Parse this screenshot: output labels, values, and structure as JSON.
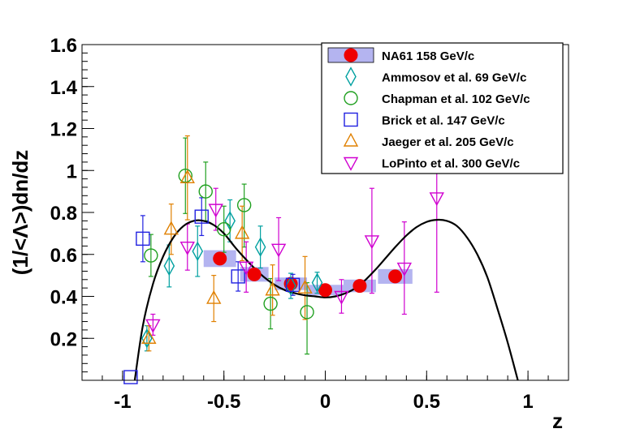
{
  "chart_data": {
    "type": "scatter",
    "title": "",
    "xlabel": "z",
    "ylabel": "(1/<Λ>)dn/dz",
    "xlim": [
      -1.2,
      1.2
    ],
    "ylim": [
      0.0,
      1.6
    ],
    "xticks": [
      {
        "v": -1,
        "label": "-1"
      },
      {
        "v": -0.5,
        "label": "-0.5"
      },
      {
        "v": 0,
        "label": "0"
      },
      {
        "v": 0.5,
        "label": "0.5"
      },
      {
        "v": 1,
        "label": "1"
      }
    ],
    "yticks": [
      {
        "v": 0.2,
        "label": "0.2"
      },
      {
        "v": 0.4,
        "label": "0.4"
      },
      {
        "v": 0.6,
        "label": "0.6"
      },
      {
        "v": 0.8,
        "label": "0.8"
      },
      {
        "v": 1.0,
        "label": "1"
      },
      {
        "v": 1.2,
        "label": "1.2"
      },
      {
        "v": 1.4,
        "label": "1.4"
      },
      {
        "v": 1.6,
        "label": "1.6"
      }
    ],
    "legend_position": "top-right",
    "curve": {
      "name": "fit",
      "color": "#000000",
      "points": [
        [
          -0.94,
          0.0
        ],
        [
          -0.9,
          0.26
        ],
        [
          -0.85,
          0.46
        ],
        [
          -0.8,
          0.59
        ],
        [
          -0.75,
          0.68
        ],
        [
          -0.7,
          0.735
        ],
        [
          -0.65,
          0.76
        ],
        [
          -0.6,
          0.76
        ],
        [
          -0.55,
          0.74
        ],
        [
          -0.5,
          0.7
        ],
        [
          -0.45,
          0.64
        ],
        [
          -0.4,
          0.585
        ],
        [
          -0.35,
          0.535
        ],
        [
          -0.3,
          0.49
        ],
        [
          -0.25,
          0.455
        ],
        [
          -0.2,
          0.43
        ],
        [
          -0.15,
          0.415
        ],
        [
          -0.1,
          0.405
        ],
        [
          -0.05,
          0.4
        ],
        [
          0.0,
          0.395
        ],
        [
          0.05,
          0.4
        ],
        [
          0.1,
          0.415
        ],
        [
          0.15,
          0.44
        ],
        [
          0.2,
          0.48
        ],
        [
          0.25,
          0.53
        ],
        [
          0.3,
          0.585
        ],
        [
          0.35,
          0.64
        ],
        [
          0.4,
          0.69
        ],
        [
          0.45,
          0.73
        ],
        [
          0.5,
          0.755
        ],
        [
          0.55,
          0.765
        ],
        [
          0.6,
          0.76
        ],
        [
          0.65,
          0.735
        ],
        [
          0.7,
          0.68
        ],
        [
          0.75,
          0.6
        ],
        [
          0.8,
          0.49
        ],
        [
          0.85,
          0.34
        ],
        [
          0.9,
          0.18
        ],
        [
          0.95,
          0.0
        ]
      ]
    },
    "series": [
      {
        "name": "NA61 158 GeV/c",
        "marker": "circle-filled",
        "color": "#ee0000",
        "band_color": "#b4b4f0",
        "points": [
          {
            "x": -0.52,
            "y": 0.58,
            "bx": 0.08,
            "by": 0.04
          },
          {
            "x": -0.35,
            "y": 0.505,
            "bx": 0.07,
            "by": 0.035
          },
          {
            "x": -0.17,
            "y": 0.46,
            "bx": 0.08,
            "by": 0.03
          },
          {
            "x": 0.0,
            "y": 0.43,
            "bx": 0.09,
            "by": 0.025
          },
          {
            "x": 0.17,
            "y": 0.45,
            "bx": 0.08,
            "by": 0.03
          },
          {
            "x": 0.345,
            "y": 0.495,
            "bx": 0.085,
            "by": 0.035
          }
        ]
      },
      {
        "name": "Ammosov et al. 69 GeV/c",
        "marker": "diamond-open",
        "color": "#00a0a0",
        "points": [
          {
            "x": -0.88,
            "y": 0.2,
            "eu": 0.06,
            "ed": 0.06
          },
          {
            "x": -0.77,
            "y": 0.545,
            "eu": 0.1,
            "ed": 0.1
          },
          {
            "x": -0.63,
            "y": 0.615,
            "eu": 0.12,
            "ed": 0.12
          },
          {
            "x": -0.47,
            "y": 0.76,
            "eu": 0.1,
            "ed": 0.1
          },
          {
            "x": -0.32,
            "y": 0.635,
            "eu": 0.1,
            "ed": 0.1
          },
          {
            "x": -0.17,
            "y": 0.45,
            "eu": 0.06,
            "ed": 0.06
          },
          {
            "x": -0.04,
            "y": 0.465,
            "eu": 0.05,
            "ed": 0.05
          }
        ]
      },
      {
        "name": "Chapman et al. 102 GeV/c",
        "marker": "circle-open",
        "color": "#20a020",
        "points": [
          {
            "x": -0.86,
            "y": 0.595,
            "eu": 0.1,
            "ed": 0.1
          },
          {
            "x": -0.69,
            "y": 0.975,
            "eu": 0.18,
            "ed": 0.18
          },
          {
            "x": -0.59,
            "y": 0.9,
            "eu": 0.14,
            "ed": 0.14
          },
          {
            "x": -0.5,
            "y": 0.72,
            "eu": 0.11,
            "ed": 0.11
          },
          {
            "x": -0.4,
            "y": 0.835,
            "eu": 0.1,
            "ed": 0.2
          },
          {
            "x": -0.27,
            "y": 0.365,
            "eu": 0.12,
            "ed": 0.12
          },
          {
            "x": -0.09,
            "y": 0.325,
            "eu": 0.14,
            "ed": 0.2
          }
        ]
      },
      {
        "name": "Brick et al. 147 GeV/c",
        "marker": "square-open",
        "color": "#2020e0",
        "points": [
          {
            "x": -0.96,
            "y": 0.015,
            "eu": 0.0,
            "ed": 0.0
          },
          {
            "x": -0.9,
            "y": 0.675,
            "eu": 0.11,
            "ed": 0.11
          },
          {
            "x": -0.61,
            "y": 0.78,
            "eu": 0.09,
            "ed": 0.09
          },
          {
            "x": -0.43,
            "y": 0.495,
            "eu": 0.07,
            "ed": 0.07
          },
          {
            "x": -0.16,
            "y": 0.455,
            "eu": 0.05,
            "ed": 0.05
          }
        ]
      },
      {
        "name": "Jaeger et al. 205 GeV/c",
        "marker": "triangle-up-open",
        "color": "#e08000",
        "points": [
          {
            "x": -0.87,
            "y": 0.2,
            "eu": 0.06,
            "ed": 0.06
          },
          {
            "x": -0.76,
            "y": 0.72,
            "eu": 0.12,
            "ed": 0.12
          },
          {
            "x": -0.68,
            "y": 0.965,
            "eu": 0.2,
            "ed": 0.2
          },
          {
            "x": -0.55,
            "y": 0.39,
            "eu": 0.11,
            "ed": 0.11
          },
          {
            "x": -0.41,
            "y": 0.7,
            "eu": 0.13,
            "ed": 0.13
          },
          {
            "x": -0.26,
            "y": 0.43,
            "eu": 0.12,
            "ed": 0.12
          },
          {
            "x": -0.1,
            "y": 0.44,
            "eu": 0.15,
            "ed": 0.15
          }
        ]
      },
      {
        "name": "LoPinto et al. 300 GeV/c",
        "marker": "triangle-down-open",
        "color": "#d000d0",
        "points": [
          {
            "x": -0.85,
            "y": 0.265,
            "eu": 0.05,
            "ed": 0.05
          },
          {
            "x": -0.68,
            "y": 0.635,
            "eu": 0.11,
            "ed": 0.11
          },
          {
            "x": -0.54,
            "y": 0.815,
            "eu": 0.1,
            "ed": 0.1
          },
          {
            "x": -0.39,
            "y": 0.54,
            "eu": 0.12,
            "ed": 0.12
          },
          {
            "x": -0.23,
            "y": 0.625,
            "eu": 0.15,
            "ed": 0.15
          },
          {
            "x": 0.08,
            "y": 0.4,
            "eu": 0.08,
            "ed": 0.08
          },
          {
            "x": 0.23,
            "y": 0.665,
            "eu": 0.25,
            "ed": 0.25
          },
          {
            "x": 0.39,
            "y": 0.535,
            "eu": 0.22,
            "ed": 0.22
          },
          {
            "x": 0.55,
            "y": 0.87,
            "eu": 0.31,
            "ed": 0.45
          }
        ]
      }
    ]
  }
}
